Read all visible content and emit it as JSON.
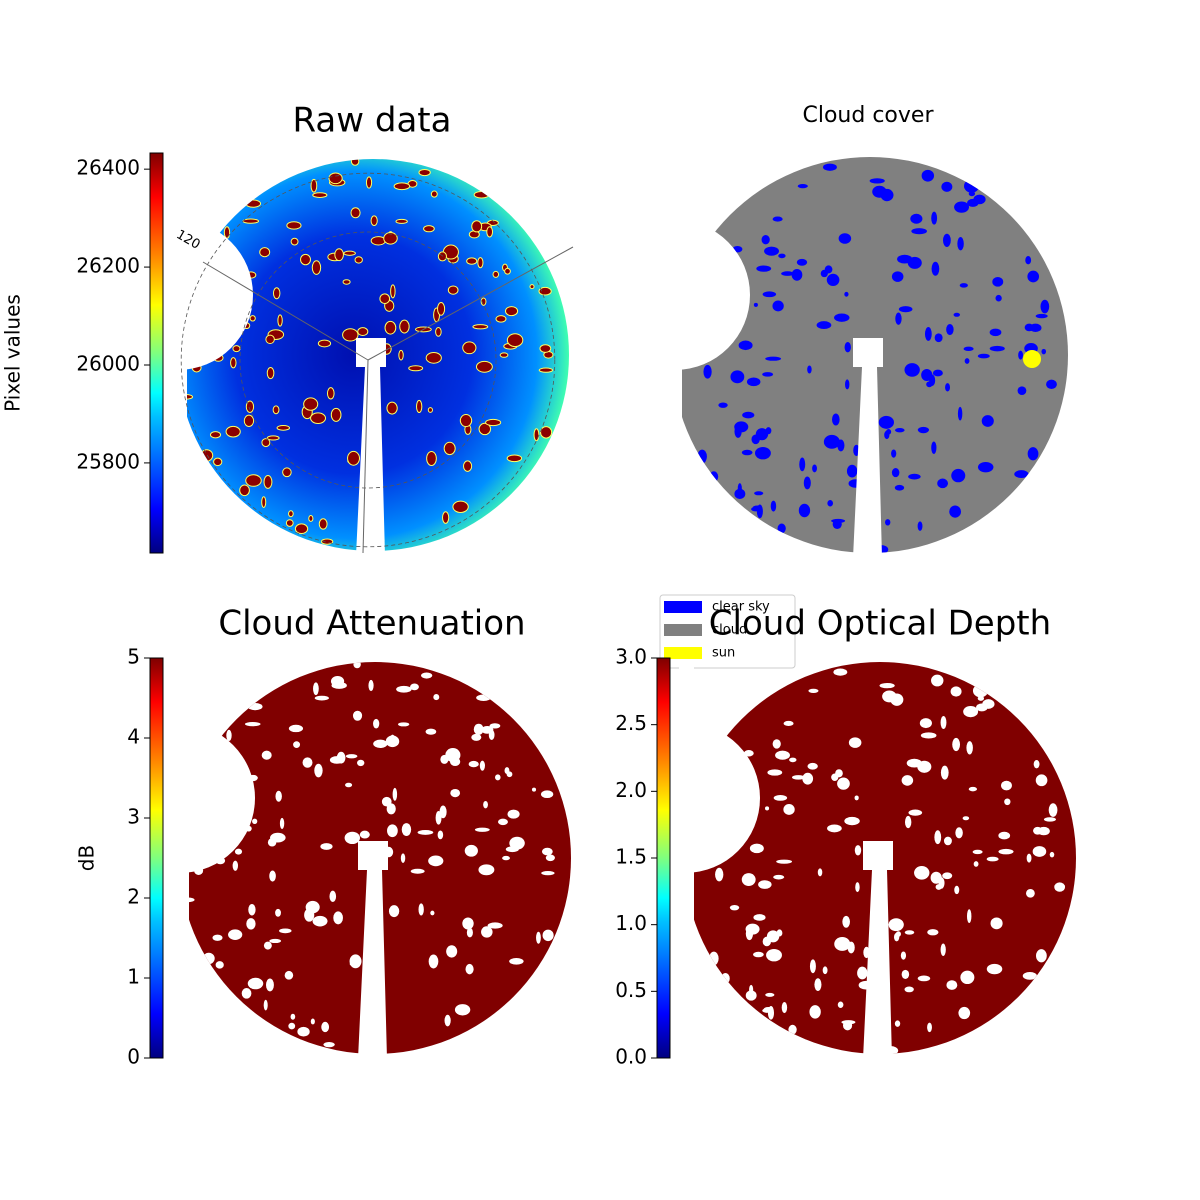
{
  "chart_data": [
    {
      "type": "image",
      "title": "Raw data",
      "colorbar": {
        "label": "Pixel values",
        "lim": [
          25616,
          26433
        ],
        "ticks": [
          25800,
          26000,
          26200,
          26400
        ],
        "colormap": "jet"
      },
      "annotations": [
        "120"
      ]
    },
    {
      "type": "image",
      "title": "Cloud cover",
      "series": [
        {
          "name": "clear sky",
          "color": "#0000ff"
        },
        {
          "name": "cloud",
          "color": "#808080"
        },
        {
          "name": "sun",
          "color": "#ffff00"
        }
      ]
    },
    {
      "type": "image",
      "title": "Cloud Attenuation",
      "colorbar": {
        "label": "dB",
        "lim": [
          0,
          5
        ],
        "ticks": [
          0,
          1,
          2,
          3,
          4,
          5
        ],
        "colormap": "jet"
      }
    },
    {
      "type": "image",
      "title": "Cloud Optical Depth",
      "colorbar": {
        "lim": [
          0,
          3
        ],
        "ticks": [
          {
            "value": 0,
            "label": "0.0"
          },
          0.5,
          {
            "value": 1,
            "label": "1.0"
          },
          1.5,
          {
            "value": 2,
            "label": "2.0"
          },
          2.5,
          {
            "value": 3,
            "label": "3.0"
          }
        ],
        "colormap": "jet"
      }
    }
  ]
}
